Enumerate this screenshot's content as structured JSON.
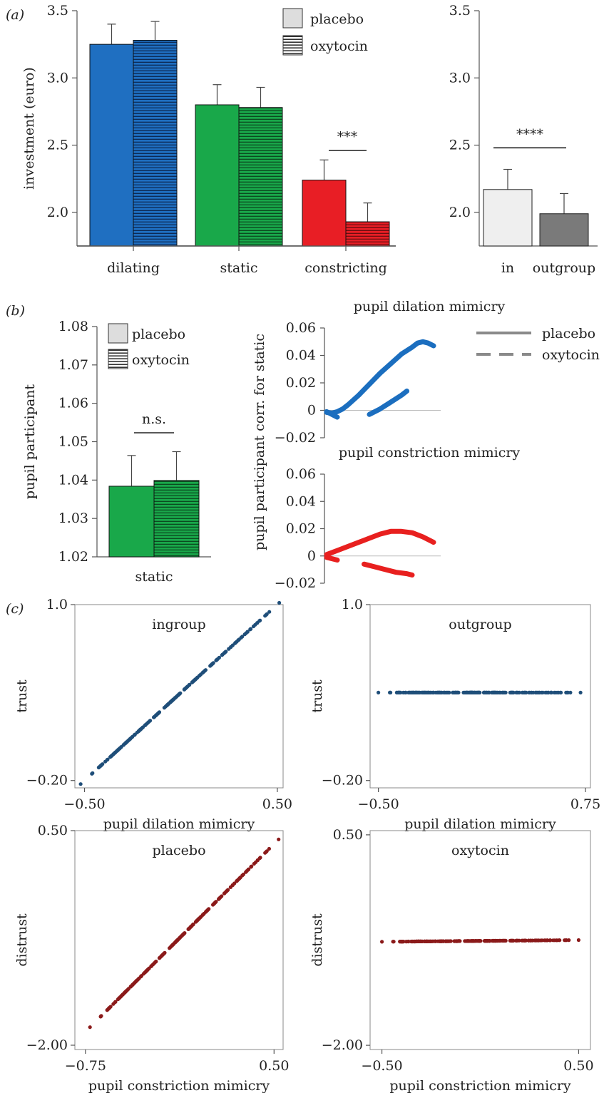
{
  "panel_labels": [
    "(a)",
    "(b)",
    "(c)"
  ],
  "colors": {
    "dilating": "#1f6fc1",
    "static": "#19a84a",
    "constricting": "#e81e25",
    "ingroup_bar": "#efefef",
    "outgroup_bar": "#7a7a7a",
    "blue_curve": "#1b6ebf",
    "red_curve": "#e8201f",
    "scatter_blue": "#1f4e79",
    "scatter_red": "#8b1a1a"
  },
  "chart_data": [
    {
      "id": "a1",
      "type": "bar",
      "ylabel": "investment (euro)",
      "ylim": [
        1.75,
        3.5
      ],
      "yticks": [
        2.0,
        2.5,
        3.0,
        3.5
      ],
      "ytick_labels": [
        "2.0",
        "2.5",
        "3.0",
        "3.5"
      ],
      "categories": [
        "dilating",
        "static",
        "constricting"
      ],
      "legend": [
        "placebo",
        "oxytocin"
      ],
      "series": [
        {
          "name": "placebo",
          "values": [
            3.25,
            2.8,
            2.24
          ],
          "errors": [
            0.15,
            0.15,
            0.15
          ]
        },
        {
          "name": "oxytocin",
          "values": [
            3.28,
            2.78,
            1.93
          ],
          "errors": [
            0.14,
            0.15,
            0.14
          ]
        }
      ],
      "annotation": "***"
    },
    {
      "id": "a2",
      "type": "bar",
      "ylim": [
        1.75,
        3.5
      ],
      "yticks": [
        2.0,
        2.5,
        3.0,
        3.5
      ],
      "ytick_labels": [
        "2.0",
        "2.5",
        "3.0",
        "3.5"
      ],
      "categories": [
        "in",
        "outgroup"
      ],
      "values": [
        2.17,
        1.99
      ],
      "errors": [
        0.15,
        0.15
      ],
      "annotation": "****"
    },
    {
      "id": "b1",
      "type": "bar",
      "ylabel": "pupil participant",
      "ylim": [
        1.02,
        1.08
      ],
      "yticks": [
        1.02,
        1.03,
        1.04,
        1.05,
        1.06,
        1.07,
        1.08
      ],
      "ytick_labels": [
        "1.02",
        "1.03",
        "1.04",
        "1.05",
        "1.06",
        "1.07",
        "1.08"
      ],
      "categories": [
        "static"
      ],
      "legend": [
        "placebo",
        "oxytocin"
      ],
      "series": [
        {
          "name": "placebo",
          "values": [
            1.0384
          ],
          "errors": [
            0.008
          ]
        },
        {
          "name": "oxytocin",
          "values": [
            1.0399
          ],
          "errors": [
            0.0075
          ]
        }
      ],
      "annotation": "n.s."
    },
    {
      "id": "b2",
      "type": "line",
      "title": "pupil dilation mimicry",
      "ylabel": "pupil participant corr. for static",
      "ylim": [
        -0.02,
        0.06
      ],
      "yticks": [
        -0.02,
        0,
        0.02,
        0.04,
        0.06
      ],
      "ytick_labels": [
        "−0.02",
        "0",
        "0.02",
        "0.04",
        "0.06"
      ],
      "legend": [
        "placebo",
        "oxytocin"
      ],
      "series": [
        {
          "name": "placebo",
          "x": [
            0,
            0.05,
            0.1,
            0.15,
            0.2,
            0.3,
            0.4,
            0.5,
            0.6,
            0.7,
            0.8,
            0.85,
            0.9,
            0.95,
            1.0
          ],
          "y": [
            -0.0015,
            -0.002,
            -0.001,
            0.001,
            0.004,
            0.011,
            0.019,
            0.027,
            0.034,
            0.041,
            0.046,
            0.049,
            0.05,
            0.049,
            0.047
          ]
        },
        {
          "name": "oxytocin",
          "x": [
            0,
            0.05,
            0.1,
            0.15,
            0.2,
            0.3,
            0.4,
            0.5,
            0.6,
            0.7,
            0.75
          ],
          "y": [
            -0.001,
            -0.003,
            -0.005,
            null,
            null,
            null,
            -0.003,
            0.001,
            0.006,
            0.011,
            0.014
          ]
        }
      ]
    },
    {
      "id": "b3",
      "type": "line",
      "title": "pupil constriction mimicry",
      "ylim": [
        -0.02,
        0.06
      ],
      "yticks": [
        -0.02,
        0,
        0.02,
        0.04,
        0.06
      ],
      "ytick_labels": [
        "−0.02",
        "0",
        "0.02",
        "0.04",
        "0.06"
      ],
      "series": [
        {
          "name": "placebo",
          "x": [
            0,
            0.1,
            0.2,
            0.3,
            0.4,
            0.5,
            0.6,
            0.7,
            0.8,
            0.9,
            1.0
          ],
          "y": [
            0.001,
            0.004,
            0.007,
            0.01,
            0.013,
            0.016,
            0.018,
            0.018,
            0.017,
            0.014,
            0.01
          ]
        },
        {
          "name": "oxytocin",
          "x": [
            0,
            0.05,
            0.1,
            0.15,
            0.25,
            0.35,
            0.45,
            0.55,
            0.65,
            0.75,
            0.8
          ],
          "y": [
            -0.001,
            -0.002,
            -0.003,
            null,
            null,
            -0.006,
            -0.008,
            -0.01,
            -0.012,
            -0.013,
            -0.014
          ]
        }
      ]
    },
    {
      "id": "c1",
      "type": "scatter",
      "title": "ingroup",
      "xlabel": "pupil dilation mimicry",
      "ylabel": "trust",
      "xlim": [
        -0.55,
        0.53
      ],
      "ylim": [
        -0.25,
        1.0
      ],
      "xtick_labels": [
        "−0.50",
        "0.50"
      ],
      "xticks": [
        -0.5,
        0.5
      ],
      "ytick_labels": [
        "−0.20",
        "1.0"
      ],
      "yticks": [
        -0.2,
        1.0
      ],
      "fit": {
        "slope": 1.2,
        "intercept": 0.4
      },
      "x_range": [
        -0.52,
        0.51
      ]
    },
    {
      "id": "c2",
      "type": "scatter",
      "title": "outgroup",
      "xlabel": "pupil dilation mimicry",
      "ylabel": "trust",
      "xlim": [
        -0.55,
        0.78
      ],
      "ylim": [
        -0.25,
        1.0
      ],
      "xtick_labels": [
        "−0.50",
        "0.75"
      ],
      "xticks": [
        -0.5,
        0.75
      ],
      "ytick_labels": [
        "−0.20",
        "1.0"
      ],
      "yticks": [
        -0.2,
        1.0
      ],
      "fit": {
        "slope": 0,
        "intercept": 0.4
      },
      "x_range": [
        -0.5,
        0.72
      ]
    },
    {
      "id": "c3",
      "type": "scatter",
      "title": "placebo",
      "xlabel": "pupil constriction mimicry",
      "ylabel": "distrust",
      "xlim": [
        -0.82,
        0.56
      ],
      "ylim": [
        -2.05,
        0.5
      ],
      "xtick_labels": [
        "−0.75",
        "0.50"
      ],
      "xticks": [
        -0.75,
        0.5
      ],
      "ytick_labels": [
        "−2.00",
        "0.50"
      ],
      "yticks": [
        -2.0,
        0.5
      ],
      "fit": {
        "slope": 1.75,
        "intercept": -0.53
      },
      "x_range": [
        -0.72,
        0.53
      ]
    },
    {
      "id": "c4",
      "type": "scatter",
      "title": "oxytocin",
      "xlabel": "pupil constriction mimicry",
      "ylabel": "distrust",
      "xlim": [
        -0.56,
        0.56
      ],
      "ylim": [
        -2.05,
        0.55
      ],
      "xtick_labels": [
        "−0.50",
        "0.50"
      ],
      "xticks": [
        -0.5,
        0.5
      ],
      "ytick_labels": [
        "−2.00",
        "0.50"
      ],
      "yticks": [
        -2.0,
        0.5
      ],
      "fit": {
        "slope": 0.02,
        "intercept": -0.76
      },
      "x_range": [
        -0.5,
        0.5
      ]
    }
  ]
}
